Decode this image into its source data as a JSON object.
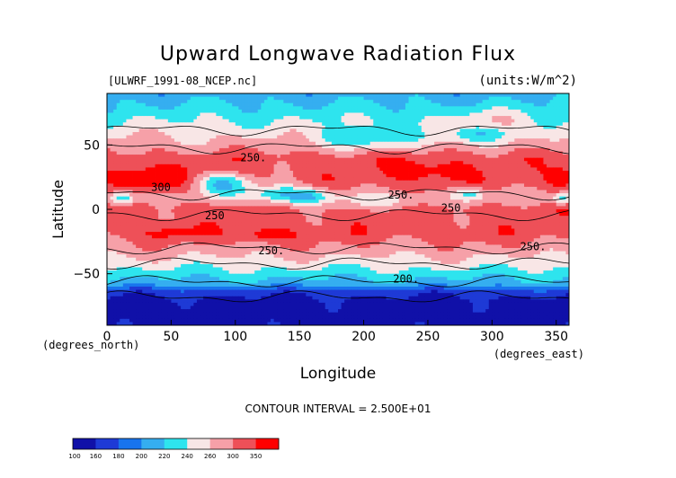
{
  "chart_data": {
    "type": "heatmap",
    "title": "Upward Longwave Radiation Flux",
    "dataset_label": "[ULWRF_1991-08_NCEP.nc]",
    "units_label": "(units:W/m^2)",
    "xlabel": "Longitude",
    "ylabel": "Latitude",
    "x_units_label": "(degrees_east)",
    "y_units_label": "(degrees_north)",
    "xlim": [
      0,
      360
    ],
    "ylim": [
      -90,
      90
    ],
    "x_ticks": [
      0,
      50,
      100,
      150,
      200,
      250,
      300,
      350
    ],
    "y_ticks": [
      50,
      0,
      -50
    ],
    "contour_interval_text": "CONTOUR INTERVAL = 2.500E+01",
    "contour_labels": [
      {
        "text": "250.",
        "lon": 114,
        "lat": 40
      },
      {
        "text": "300",
        "lon": 42,
        "lat": 17
      },
      {
        "text": "250",
        "lon": 84,
        "lat": -5
      },
      {
        "text": "250.",
        "lon": 229,
        "lat": 11
      },
      {
        "text": "250",
        "lon": 268,
        "lat": 1
      },
      {
        "text": "250.",
        "lon": 128,
        "lat": -32
      },
      {
        "text": "250.",
        "lon": 332,
        "lat": -29
      },
      {
        "text": "200.",
        "lon": 233,
        "lat": -54
      }
    ],
    "colorbar": {
      "ticks": [
        "100",
        "160",
        "180",
        "200",
        "220",
        "240",
        "260",
        "300",
        "350"
      ],
      "colors": [
        "#1010a8",
        "#1e3ad6",
        "#1874ee",
        "#35aef0",
        "#2ee4ee",
        "#f8e6e6",
        "#f6a0a8",
        "#ee5058",
        "#ff0000"
      ]
    },
    "zonal_profile": [
      {
        "lat": 90,
        "band": 3
      },
      {
        "lat": 75,
        "band": 4
      },
      {
        "lat": 62,
        "band": 5
      },
      {
        "lat": 50,
        "band": 6
      },
      {
        "lat": 40,
        "band": 7
      },
      {
        "lat": 30,
        "band": 7
      },
      {
        "lat": 20,
        "band": 7
      },
      {
        "lat": 10,
        "band": 6
      },
      {
        "lat": 0,
        "band": 7
      },
      {
        "lat": -10,
        "band": 7
      },
      {
        "lat": -20,
        "band": 7
      },
      {
        "lat": -32,
        "band": 6
      },
      {
        "lat": -42,
        "band": 5
      },
      {
        "lat": -50,
        "band": 4
      },
      {
        "lat": -58,
        "band": 3
      },
      {
        "lat": -64,
        "band": 1
      },
      {
        "lat": -72,
        "band": 0
      },
      {
        "lat": -90,
        "band": 0
      }
    ]
  }
}
